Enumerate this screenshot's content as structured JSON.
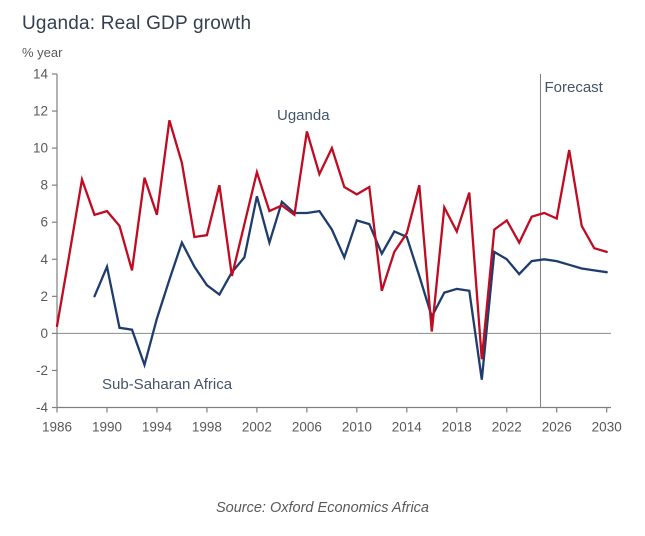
{
  "title": "Uganda: Real GDP growth",
  "unit_label": "% year",
  "source": "Source: Oxford Economics Africa",
  "annotations": {
    "uganda_label": "Uganda",
    "ssa_label": "Sub-Saharan Africa",
    "forecast_label": "Forecast"
  },
  "colors": {
    "uganda_line": "#c00b23",
    "ssa_line": "#1e3c6e",
    "title_text": "#333f50",
    "annotation_text": "#44546a",
    "axis_text": "#595959",
    "axis_line": "#808080",
    "zero_line": "#8c8c8c",
    "forecast_line": "#808080"
  },
  "chart_data": {
    "type": "line",
    "title": "Uganda: Real GDP growth",
    "ylabel": "% year",
    "xlim": [
      1986,
      2030
    ],
    "ylim": [
      -4,
      14
    ],
    "x_ticks": [
      1986,
      1990,
      1994,
      1998,
      2002,
      2006,
      2010,
      2014,
      2018,
      2022,
      2026,
      2030
    ],
    "y_ticks": [
      14,
      12,
      10,
      8,
      6,
      4,
      2,
      0,
      -2,
      -4
    ],
    "grid": false,
    "zero_line": true,
    "forecast_line_x": 2024.7,
    "legend_position": "inline-annotations",
    "series": [
      {
        "name": "Uganda",
        "color_key": "uganda_line",
        "x": [
          1986,
          1987,
          1988,
          1989,
          1990,
          1991,
          1992,
          1993,
          1994,
          1995,
          1996,
          1997,
          1998,
          1999,
          2000,
          2001,
          2002,
          2003,
          2004,
          2005,
          2006,
          2007,
          2008,
          2009,
          2010,
          2011,
          2012,
          2013,
          2014,
          2015,
          2016,
          2017,
          2018,
          2019,
          2020,
          2021,
          2022,
          2023,
          2024,
          2025,
          2026,
          2027,
          2028,
          2029,
          2030
        ],
        "values": [
          0.4,
          4.3,
          8.3,
          6.4,
          6.6,
          5.8,
          3.4,
          8.4,
          6.4,
          11.5,
          9.2,
          5.2,
          5.3,
          8.0,
          3.1,
          5.9,
          8.7,
          6.6,
          6.9,
          6.4,
          10.9,
          8.6,
          10.0,
          7.9,
          7.5,
          7.9,
          2.3,
          4.4,
          5.4,
          8.0,
          0.1,
          6.8,
          5.5,
          7.6,
          -1.4,
          5.6,
          6.1,
          4.9,
          6.3,
          6.5,
          6.2,
          9.9,
          5.8,
          4.6,
          4.4
        ]
      },
      {
        "name": "Sub-Saharan Africa",
        "color_key": "ssa_line",
        "x": [
          1989,
          1990,
          1991,
          1992,
          1993,
          1994,
          1995,
          1996,
          1997,
          1998,
          1999,
          2000,
          2001,
          2002,
          2003,
          2004,
          2005,
          2006,
          2007,
          2008,
          2009,
          2010,
          2011,
          2012,
          2013,
          2014,
          2015,
          2016,
          2017,
          2018,
          2019,
          2020,
          2021,
          2022,
          2023,
          2024,
          2025,
          2026,
          2027,
          2028,
          2029,
          2030
        ],
        "values": [
          2.0,
          3.6,
          0.3,
          0.2,
          -1.7,
          0.8,
          2.9,
          4.9,
          3.6,
          2.6,
          2.1,
          3.3,
          4.1,
          7.4,
          4.9,
          7.1,
          6.5,
          6.5,
          6.6,
          5.6,
          4.1,
          6.1,
          5.9,
          4.3,
          5.5,
          5.2,
          3.1,
          0.9,
          2.2,
          2.4,
          2.3,
          -2.5,
          4.4,
          4.0,
          3.2,
          3.9,
          4.0,
          3.9,
          3.7,
          3.5,
          3.4,
          3.3
        ]
      }
    ]
  }
}
